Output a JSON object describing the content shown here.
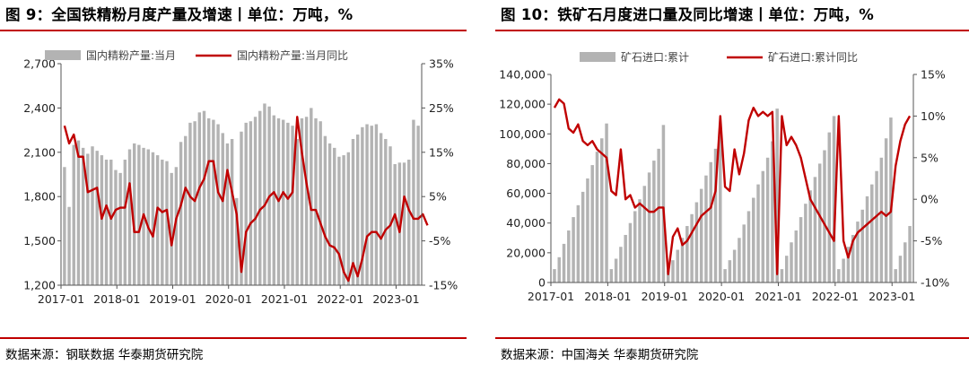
{
  "panels": [
    {
      "title": "图 9：全国铁精粉月度产量及增速丨单位：万吨，%",
      "source": "数据来源：钢联数据 华泰期货研究院"
    },
    {
      "title": "图 10：铁矿石月度进口量及同比增速丨单位：万吨，%",
      "source": "数据来源：中国海关 华泰期货研究院"
    }
  ],
  "colors": {
    "bar": "#b3b3b3",
    "line": "#c00000",
    "rule": "#c00000"
  },
  "chart_data": [
    {
      "type": "bar+line",
      "x_start": "2017-01",
      "x_tick_labels": [
        "2017-01",
        "2018-01",
        "2019-01",
        "2020-01",
        "2021-01",
        "2022-01",
        "2023-01"
      ],
      "y_left": {
        "min": 1200,
        "max": 2700,
        "ticks": [
          "1,200",
          "1,500",
          "1,800",
          "2,100",
          "2,400",
          "2,700"
        ]
      },
      "y_right": {
        "min": -15,
        "max": 35,
        "ticks": [
          "-15%",
          "-5%",
          "5%",
          "15%",
          "25%",
          "35%"
        ]
      },
      "legend": "top-left",
      "series": [
        {
          "name": "国内精粉产量:当月",
          "type": "bar",
          "axis": "left",
          "values": [
            2000,
            1730,
            2150,
            2180,
            2130,
            2090,
            2140,
            2110,
            2080,
            2050,
            2050,
            1980,
            1960,
            2050,
            2120,
            2160,
            2150,
            2130,
            2120,
            2100,
            2080,
            2050,
            2040,
            1960,
            2000,
            2170,
            2210,
            2300,
            2310,
            2370,
            2380,
            2330,
            2320,
            2290,
            2230,
            2160,
            2190,
            1790,
            2240,
            2300,
            2310,
            2340,
            2380,
            2430,
            2410,
            2350,
            2330,
            2320,
            2300,
            2280,
            2190,
            2330,
            2340,
            2400,
            2330,
            2310,
            2210,
            2160,
            2130,
            2070,
            2080,
            2100,
            2190,
            2220,
            2270,
            2290,
            2280,
            2290,
            2230,
            2190,
            2140,
            2020,
            2030,
            2030,
            2050,
            2320,
            2280
          ]
        },
        {
          "name": "国内精粉产量:当月同比",
          "type": "line",
          "axis": "right",
          "values": [
            21,
            17,
            19,
            14,
            14,
            6,
            6.5,
            7,
            0,
            3,
            0,
            2,
            2.5,
            2.5,
            8,
            -3,
            -3,
            1,
            -2,
            -4,
            2.5,
            1.5,
            2,
            -6,
            0,
            3,
            7,
            5,
            4,
            7,
            9,
            13,
            13,
            6,
            4,
            11,
            6,
            1,
            -12,
            -3,
            -1,
            0,
            2,
            3,
            5,
            6,
            4,
            6,
            4.5,
            6,
            23,
            15,
            8,
            2,
            2,
            -1,
            -4,
            -6,
            -6.5,
            -8,
            -12,
            -14,
            -10,
            -13,
            -9,
            -4,
            -3,
            -3,
            -4.5,
            -2.5,
            -1.5,
            1,
            -3,
            5,
            2,
            0,
            0,
            1,
            -1.5
          ]
        }
      ]
    },
    {
      "type": "bar+line",
      "x_start": "2017-01",
      "x_tick_labels": [
        "2017-01",
        "2018-01",
        "2019-01",
        "2020-01",
        "2021-01",
        "2022-01",
        "2023-01"
      ],
      "y_left": {
        "min": 0,
        "max": 140000,
        "ticks": [
          "0",
          "20,000",
          "40,000",
          "60,000",
          "80,000",
          "100,000",
          "120,000",
          "140,000"
        ]
      },
      "y_right": {
        "min": -10,
        "max": 15,
        "ticks": [
          "-10%",
          "-5%",
          "0%",
          "5%",
          "10%",
          "15%"
        ]
      },
      "legend": "top-left",
      "series": [
        {
          "name": "矿石进口:累计",
          "type": "bar",
          "axis": "left",
          "values": [
            9000,
            17000,
            26000,
            35000,
            44000,
            52000,
            61000,
            70000,
            79000,
            88000,
            97000,
            107000,
            9000,
            16000,
            24000,
            32000,
            40000,
            48000,
            56000,
            65000,
            74000,
            82000,
            90000,
            106000,
            8000,
            15000,
            22000,
            30000,
            38000,
            46000,
            54000,
            63000,
            72000,
            81000,
            90000,
            107000,
            9000,
            15000,
            22000,
            30000,
            39000,
            48000,
            57000,
            66000,
            75000,
            84000,
            95000,
            117000,
            9000,
            18000,
            27000,
            35000,
            44000,
            53000,
            62000,
            71000,
            80000,
            89000,
            101000,
            112000,
            9000,
            16000,
            24000,
            32000,
            41000,
            49000,
            58000,
            66000,
            75000,
            84000,
            97000,
            111000,
            9000,
            18000,
            27000,
            38000
          ]
        },
        {
          "name": "矿石进口:累计同比",
          "type": "line",
          "axis": "right",
          "values": [
            11,
            12,
            11.5,
            8.5,
            8,
            9,
            7,
            6.5,
            7,
            6,
            5.5,
            5,
            1,
            0.5,
            6,
            0,
            0.5,
            -1,
            -0.5,
            -1,
            -1.5,
            -1.5,
            -1,
            -1,
            -9,
            -4.5,
            -3.5,
            -5.5,
            -5,
            -4,
            -3,
            -2,
            -1.5,
            -1,
            1,
            10,
            1.5,
            1,
            6,
            3,
            5.5,
            9.5,
            11,
            10,
            10.5,
            10,
            10.5,
            -9,
            10,
            6.5,
            7.5,
            6.5,
            5,
            2.5,
            0,
            -1,
            -2,
            -3,
            -4,
            -5,
            10,
            -5,
            -7,
            -5,
            -4,
            -3.5,
            -3,
            -2.5,
            -2,
            -1.5,
            -2,
            -1.5,
            4,
            7,
            9,
            10
          ]
        }
      ]
    }
  ]
}
